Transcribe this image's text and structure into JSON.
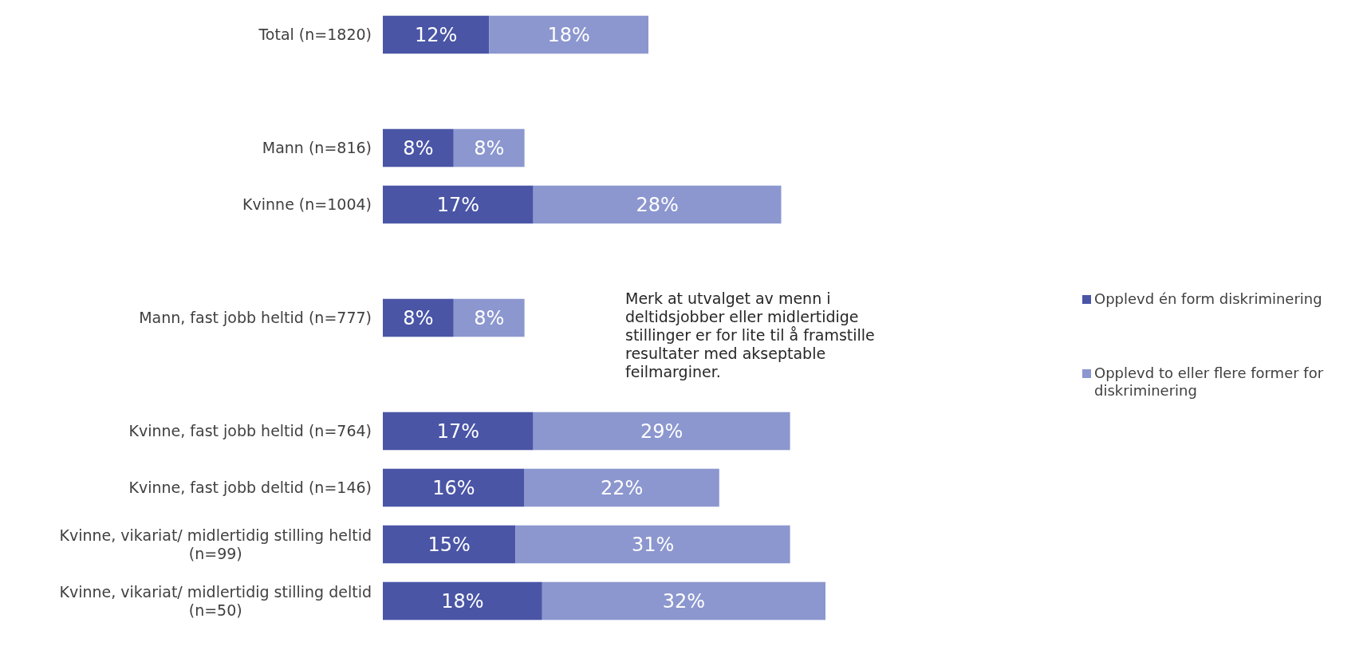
{
  "chart_data": {
    "type": "bar",
    "orientation": "horizontal",
    "stacked": true,
    "categories": [
      "Total (n=1820)",
      null,
      "Mann (n=816)",
      "Kvinne (n=1004)",
      null,
      "Mann, fast jobb heltid (n=777)",
      null,
      "Kvinne, fast jobb heltid (n=764)",
      "Kvinne, fast jobb deltid (n=146)",
      "Kvinne, vikariat/ midlertidig stilling heltid (n=99)",
      "Kvinne, vikariat/ midlertidig stilling deltid (n=50)"
    ],
    "series": [
      {
        "name": "Opplevd én form diskriminering",
        "color": "#4a55a6",
        "values": [
          12,
          null,
          8,
          17,
          null,
          8,
          null,
          17,
          16,
          15,
          18
        ],
        "value_labels": [
          "12%",
          null,
          "8%",
          "17%",
          null,
          "8%",
          null,
          "17%",
          "16%",
          "15%",
          "18%"
        ]
      },
      {
        "name": "Opplevd to eller flere former for diskriminering",
        "color": "#8c97cf",
        "values": [
          18,
          null,
          8,
          28,
          null,
          8,
          null,
          29,
          22,
          31,
          32
        ],
        "value_labels": [
          "18%",
          null,
          "8%",
          "28%",
          null,
          "8%",
          null,
          "29%",
          "22%",
          "31%",
          "32%"
        ]
      }
    ],
    "tick_labels": "y",
    "legend": "right",
    "annotations": [
      "Merk at utvalget av menn i deltidsjobber eller midlertidige stillinger er for lite til å framstille resultater med akseptable feilmarginer."
    ]
  }
}
